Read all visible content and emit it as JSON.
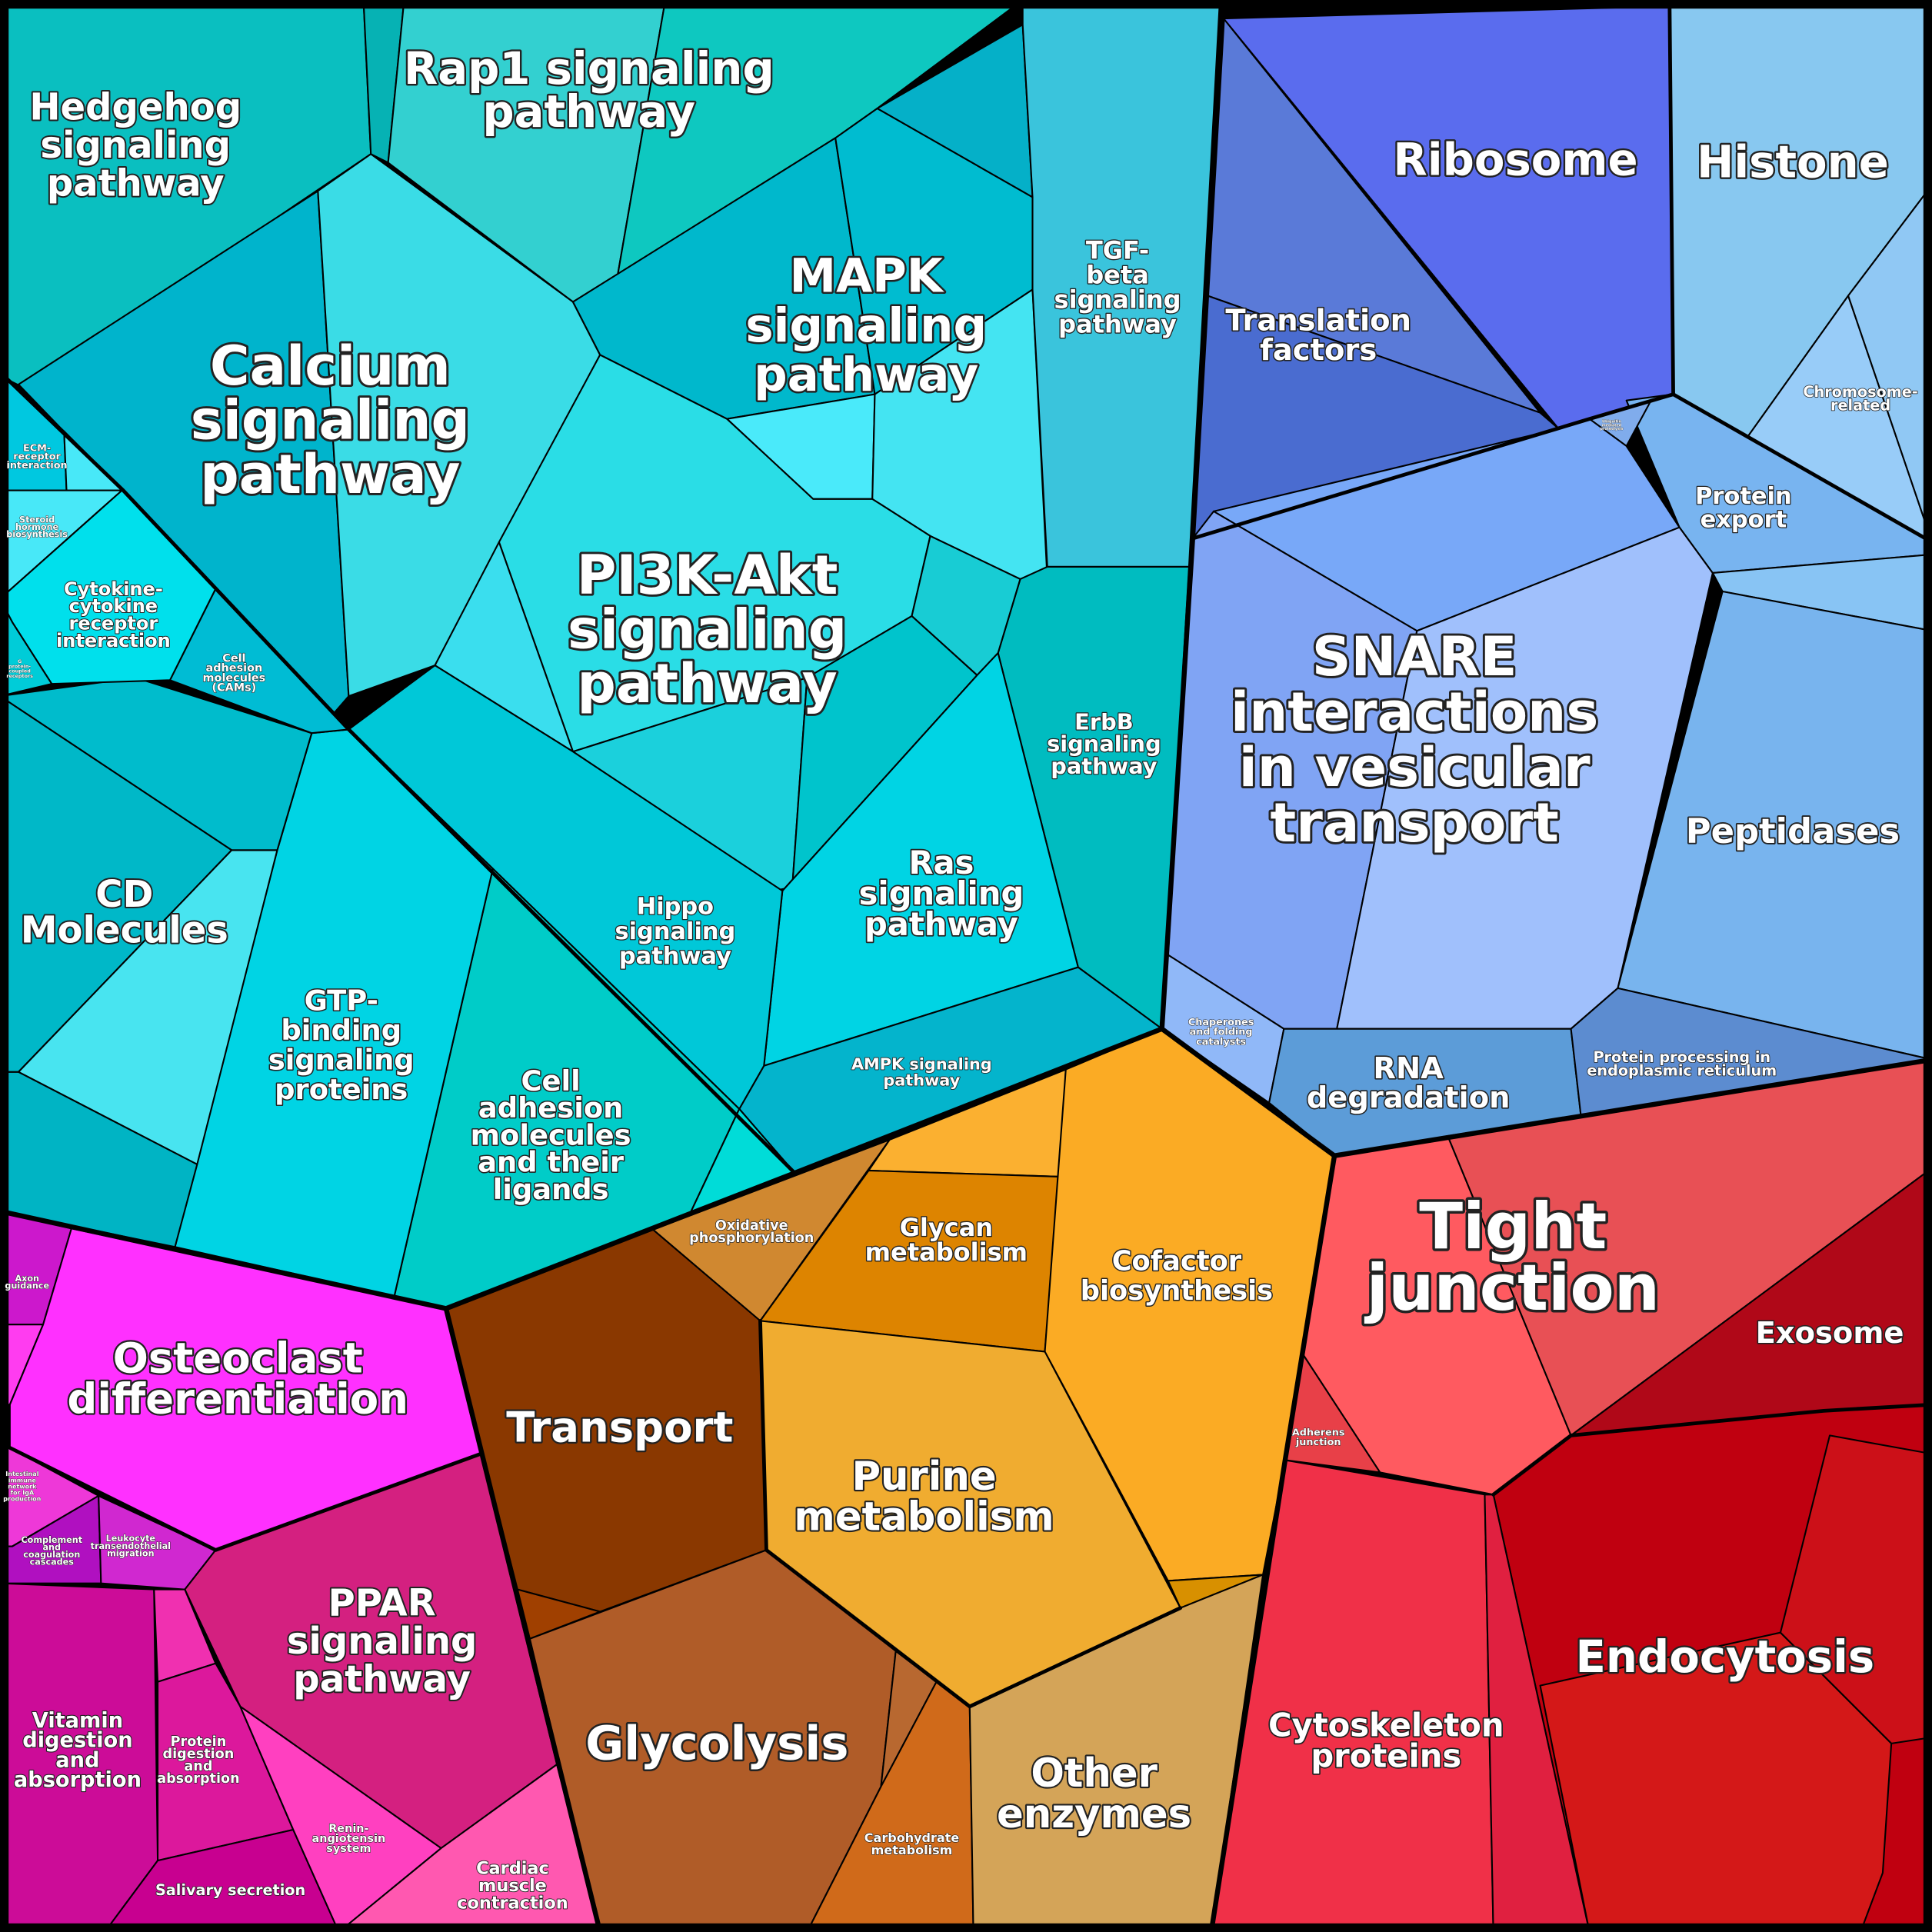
{
  "group_colors": {
    "signaling": "#00c8d8",
    "genetic": "#5a7ad8",
    "cellular": "#e83048",
    "metabolism": "#f0a020",
    "organismal": "#ff30ff"
  },
  "cells": {
    "hedgehog": [
      "Hedgehog",
      "signaling",
      "pathway"
    ],
    "rap1": [
      "Rap1 signaling",
      "pathway"
    ],
    "calcium": [
      "Calcium",
      "signaling",
      "pathway"
    ],
    "mapk": [
      "MAPK",
      "signaling",
      "pathway"
    ],
    "tgf": [
      "TGF-",
      "beta",
      "signaling",
      "pathway"
    ],
    "pi3k": [
      "PI3K-Akt",
      "signaling",
      "pathway"
    ],
    "ribosome": [
      "Ribosome"
    ],
    "histone": [
      "Histone"
    ],
    "translation": [
      "Translation",
      "factors"
    ],
    "chromosome": [
      "Chromosome-",
      "related"
    ],
    "protein_export": [
      "Protein",
      "export"
    ],
    "ubiquitin": [
      "Ubiquitin",
      "mediated",
      "proteolysis"
    ],
    "snare": [
      "SNARE",
      "interactions",
      "in vesicular",
      "transport"
    ],
    "peptidases": [
      "Peptidases"
    ],
    "chaperones": [
      "Chaperones",
      "and folding",
      "catalysts"
    ],
    "rna_degradation": [
      "RNA",
      "degradation"
    ],
    "protein_processing": [
      "Protein processing in",
      "endoplasmic reticulum"
    ],
    "erbb": [
      "ErbB",
      "signaling",
      "pathway"
    ],
    "ras": [
      "Ras",
      "signaling",
      "pathway"
    ],
    "ampk": [
      "AMPK signaling",
      "pathway"
    ],
    "hippo": [
      "Hippo",
      "signaling",
      "pathway"
    ],
    "cell_adhesion_ligands": [
      "Cell",
      "adhesion",
      "molecules",
      "and their",
      "ligands"
    ],
    "gtp": [
      "GTP-",
      "binding",
      "signaling",
      "proteins"
    ],
    "cd": [
      "CD",
      "Molecules"
    ],
    "cytokine": [
      "Cytokine-",
      "cytokine",
      "receptor",
      "interaction"
    ],
    "cams": [
      "Cell",
      "adhesion",
      "molecules",
      "(CAMs)"
    ],
    "ecm": [
      "ECM-",
      "receptor",
      "interaction"
    ],
    "steroid": [
      "Steroid",
      "hormone",
      "biosynthesis"
    ],
    "gpcr": [
      "G",
      "protein-",
      "coupled",
      "receptors"
    ],
    "oxphos": [
      "Oxidative",
      "phosphorylation"
    ],
    "glycan": [
      "Glycan",
      "metabolism"
    ],
    "cofactor": [
      "Cofactor",
      "biosynthesis"
    ],
    "transport": [
      "Transport"
    ],
    "purine": [
      "Purine",
      "metabolism"
    ],
    "glycolysis": [
      "Glycolysis"
    ],
    "carbohydrate": [
      "Carbohydrate",
      "metabolism"
    ],
    "other_enzymes": [
      "Other",
      "enzymes"
    ],
    "tight_junction": [
      "Tight",
      "junction"
    ],
    "exosome": [
      "Exosome"
    ],
    "adherens": [
      "Adherens",
      "junction"
    ],
    "endocytosis": [
      "Endocytosis"
    ],
    "cytoskeleton": [
      "Cytoskeleton",
      "proteins"
    ],
    "osteoclast": [
      "Osteoclast",
      "differentiation"
    ],
    "ppar": [
      "PPAR",
      "signaling",
      "pathway"
    ],
    "axon": [
      "Axon",
      "guidance"
    ],
    "intestinal": [
      "Intestinal",
      "immune",
      "network",
      "for IgA",
      "production"
    ],
    "complement": [
      "Complement",
      "and",
      "coagulation",
      "cascades"
    ],
    "leukocyte": [
      "Leukocyte",
      "transendothelial",
      "migration"
    ],
    "vitamin": [
      "Vitamin",
      "digestion",
      "and",
      "absorption"
    ],
    "protein_digestion": [
      "Protein",
      "digestion",
      "and",
      "absorption"
    ],
    "renin": [
      "Renin-",
      "angiotensin",
      "system"
    ],
    "salivary": [
      "Salivary secretion"
    ],
    "cardiac": [
      "Cardiac",
      "muscle",
      "contraction"
    ]
  }
}
